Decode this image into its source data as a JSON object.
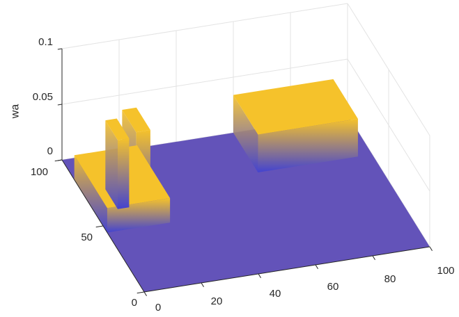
{
  "chart_data": {
    "type": "surface",
    "title": "",
    "xlabel": "",
    "ylabel": "",
    "zlabel": "wa",
    "xlim": [
      0,
      100
    ],
    "ylim": [
      0,
      100
    ],
    "zlim": [
      0,
      0.1
    ],
    "x_ticks": [
      0,
      20,
      40,
      60,
      80,
      100
    ],
    "x_tick_labels": [
      "0",
      "20",
      "40",
      "60",
      "80",
      "100"
    ],
    "y_ticks": [
      0,
      50,
      100
    ],
    "y_tick_labels": [
      "0",
      "50",
      "100"
    ],
    "z_ticks": [
      0,
      0.05,
      0.1
    ],
    "z_tick_labels": [
      "0",
      "0.05",
      "0.1"
    ],
    "grid": true,
    "colormap": [
      "#3e26a8",
      "#4757eb",
      "#2c8cf5",
      "#15b1d4",
      "#39c98f",
      "#a6be3b",
      "#f5c22b"
    ],
    "base_color": "#6353b9",
    "baseline_z": 0,
    "features": [
      {
        "name": "tall-peak",
        "x_range": [
          13,
          18
        ],
        "y_range": [
          55,
          72
        ],
        "peak_z": 0.073
      },
      {
        "name": "second-peak",
        "x_range": [
          8,
          12
        ],
        "y_range": [
          60,
          75
        ],
        "peak_z": 0.062
      },
      {
        "name": "left-plateau",
        "x_range": [
          0,
          22
        ],
        "y_range": [
          45,
          85
        ],
        "peak_z": 0.022
      },
      {
        "name": "back-ridge",
        "x_range": [
          60,
          95
        ],
        "y_range": [
          70,
          100
        ],
        "peak_z": 0.034
      }
    ]
  }
}
